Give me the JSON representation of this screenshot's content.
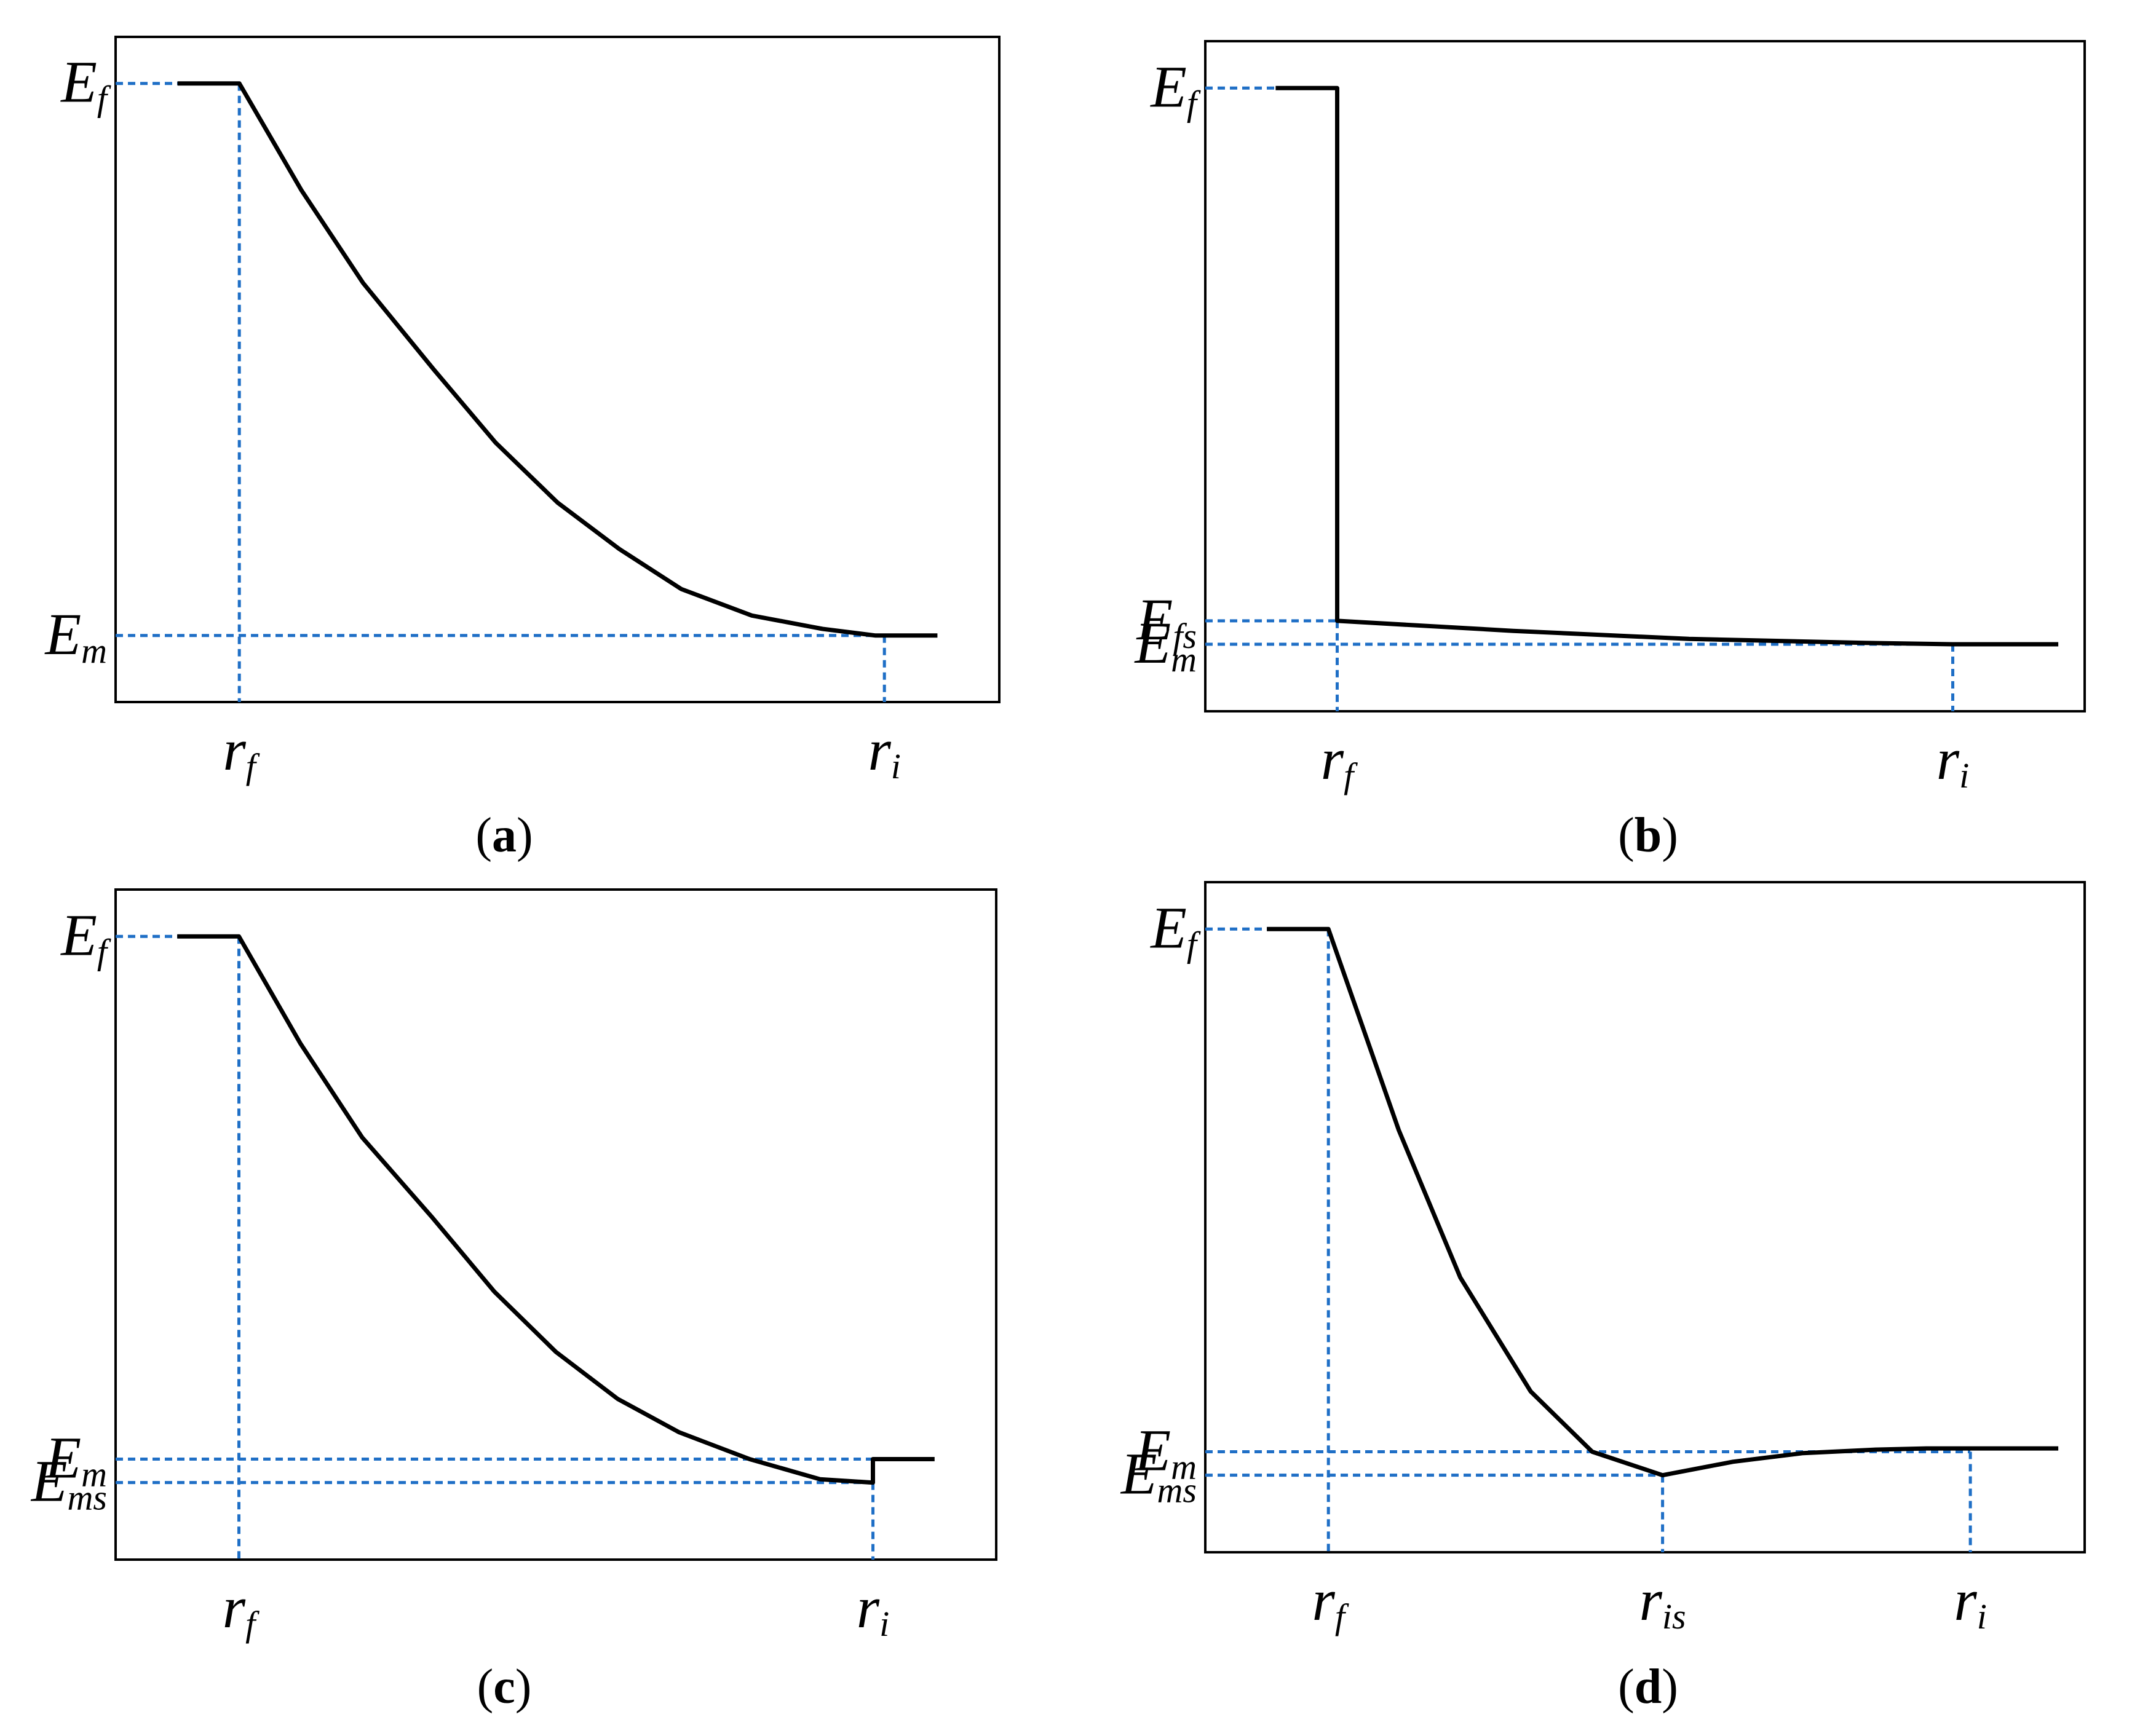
{
  "colors": {
    "curve": "#000000",
    "guide": "#1f6fc6",
    "frame": "#000000"
  },
  "chart_data": [
    {
      "type": "line",
      "panel": "a",
      "caption": {
        "open": "(",
        "letter": "a",
        "close": ")"
      },
      "xlim": [
        0,
        1
      ],
      "ylim": [
        0,
        1
      ],
      "grid": false,
      "y_ticks": [
        {
          "value": 0.93,
          "base": "E",
          "sub": "f"
        },
        {
          "value": 0.1,
          "base": "E",
          "sub": "m"
        }
      ],
      "x_ticks": [
        {
          "value": 0.14,
          "base": "r",
          "sub": "f"
        },
        {
          "value": 0.87,
          "base": "r",
          "sub": "i"
        }
      ],
      "guides": [
        {
          "orient": "h",
          "y": 0.93,
          "x_to": 0.14
        },
        {
          "orient": "v",
          "x": 0.14,
          "y_from": 0.93
        },
        {
          "orient": "h",
          "y": 0.1,
          "x_to": 0.87
        },
        {
          "orient": "v",
          "x": 0.87,
          "y_from": 0.1
        }
      ],
      "series": [
        {
          "x": [
            0.07,
            0.14,
            0.21,
            0.28,
            0.36,
            0.43,
            0.5,
            0.57,
            0.64,
            0.72,
            0.8,
            0.86,
            0.93
          ],
          "y": [
            0.93,
            0.93,
            0.77,
            0.63,
            0.5,
            0.39,
            0.3,
            0.23,
            0.17,
            0.13,
            0.11,
            0.1,
            0.1
          ]
        }
      ]
    },
    {
      "type": "line",
      "panel": "b",
      "caption": {
        "open": "(",
        "letter": "b",
        "close": ")"
      },
      "xlim": [
        0,
        1
      ],
      "ylim": [
        0,
        1
      ],
      "grid": false,
      "y_ticks": [
        {
          "value": 0.93,
          "base": "E",
          "sub": "f"
        },
        {
          "value": 0.135,
          "base": "E",
          "sub": "fs"
        },
        {
          "value": 0.1,
          "base": "E",
          "sub": "m"
        }
      ],
      "x_ticks": [
        {
          "value": 0.15,
          "base": "r",
          "sub": "f"
        },
        {
          "value": 0.85,
          "base": "r",
          "sub": "i"
        }
      ],
      "guides": [
        {
          "orient": "h",
          "y": 0.93,
          "x_to": 0.15
        },
        {
          "orient": "h",
          "y": 0.135,
          "x_to": 0.15
        },
        {
          "orient": "v",
          "x": 0.15,
          "y_from": 0.135
        },
        {
          "orient": "h",
          "y": 0.1,
          "x_to": 0.85
        },
        {
          "orient": "v",
          "x": 0.85,
          "y_from": 0.1
        }
      ],
      "series": [
        {
          "x": [
            0.08,
            0.15,
            0.15,
            0.35,
            0.55,
            0.75,
            0.85,
            0.97
          ],
          "y": [
            0.93,
            0.93,
            0.135,
            0.12,
            0.108,
            0.102,
            0.1,
            0.1
          ]
        }
      ]
    },
    {
      "type": "line",
      "panel": "c",
      "caption": {
        "open": "(",
        "letter": "c",
        "close": ")"
      },
      "xlim": [
        0,
        1
      ],
      "ylim": [
        0,
        1
      ],
      "grid": false,
      "y_ticks": [
        {
          "value": 0.93,
          "base": "E",
          "sub": "f"
        },
        {
          "value": 0.15,
          "base": "E",
          "sub": "m"
        },
        {
          "value": 0.115,
          "base": "E",
          "sub": "ms"
        }
      ],
      "x_ticks": [
        {
          "value": 0.14,
          "base": "r",
          "sub": "f"
        },
        {
          "value": 0.86,
          "base": "r",
          "sub": "i"
        }
      ],
      "guides": [
        {
          "orient": "h",
          "y": 0.93,
          "x_to": 0.14
        },
        {
          "orient": "v",
          "x": 0.14,
          "y_from": 0.93
        },
        {
          "orient": "h",
          "y": 0.15,
          "x_to": 0.86
        },
        {
          "orient": "h",
          "y": 0.115,
          "x_to": 0.86
        },
        {
          "orient": "v",
          "x": 0.86,
          "y_from": 0.115
        }
      ],
      "series": [
        {
          "x": [
            0.07,
            0.14,
            0.21,
            0.28,
            0.36,
            0.43,
            0.5,
            0.57,
            0.64,
            0.72,
            0.8,
            0.86,
            0.86,
            0.93
          ],
          "y": [
            0.93,
            0.93,
            0.77,
            0.63,
            0.51,
            0.4,
            0.31,
            0.24,
            0.19,
            0.15,
            0.12,
            0.115,
            0.15,
            0.15
          ]
        }
      ]
    },
    {
      "type": "line",
      "panel": "d",
      "caption": {
        "open": "(",
        "letter": "d",
        "close": ")"
      },
      "xlim": [
        0,
        1
      ],
      "ylim": [
        0,
        1
      ],
      "grid": false,
      "y_ticks": [
        {
          "value": 0.93,
          "base": "E",
          "sub": "f"
        },
        {
          "value": 0.15,
          "base": "E",
          "sub": "m"
        },
        {
          "value": 0.115,
          "base": "E",
          "sub": "ms"
        }
      ],
      "x_ticks": [
        {
          "value": 0.14,
          "base": "r",
          "sub": "f"
        },
        {
          "value": 0.52,
          "base": "r",
          "sub": "is"
        },
        {
          "value": 0.87,
          "base": "r",
          "sub": "i"
        }
      ],
      "guides": [
        {
          "orient": "h",
          "y": 0.93,
          "x_to": 0.14
        },
        {
          "orient": "v",
          "x": 0.14,
          "y_from": 0.93
        },
        {
          "orient": "h",
          "y": 0.15,
          "x_to": 0.87
        },
        {
          "orient": "v",
          "x": 0.87,
          "y_from": 0.15
        },
        {
          "orient": "h",
          "y": 0.115,
          "x_to": 0.52
        },
        {
          "orient": "v",
          "x": 0.52,
          "y_from": 0.115
        }
      ],
      "series": [
        {
          "x": [
            0.07,
            0.14,
            0.22,
            0.29,
            0.37,
            0.44,
            0.52,
            0.6,
            0.68,
            0.76,
            0.82,
            0.97
          ],
          "y": [
            0.93,
            0.93,
            0.63,
            0.41,
            0.24,
            0.15,
            0.115,
            0.135,
            0.148,
            0.153,
            0.155,
            0.155
          ]
        }
      ]
    }
  ]
}
